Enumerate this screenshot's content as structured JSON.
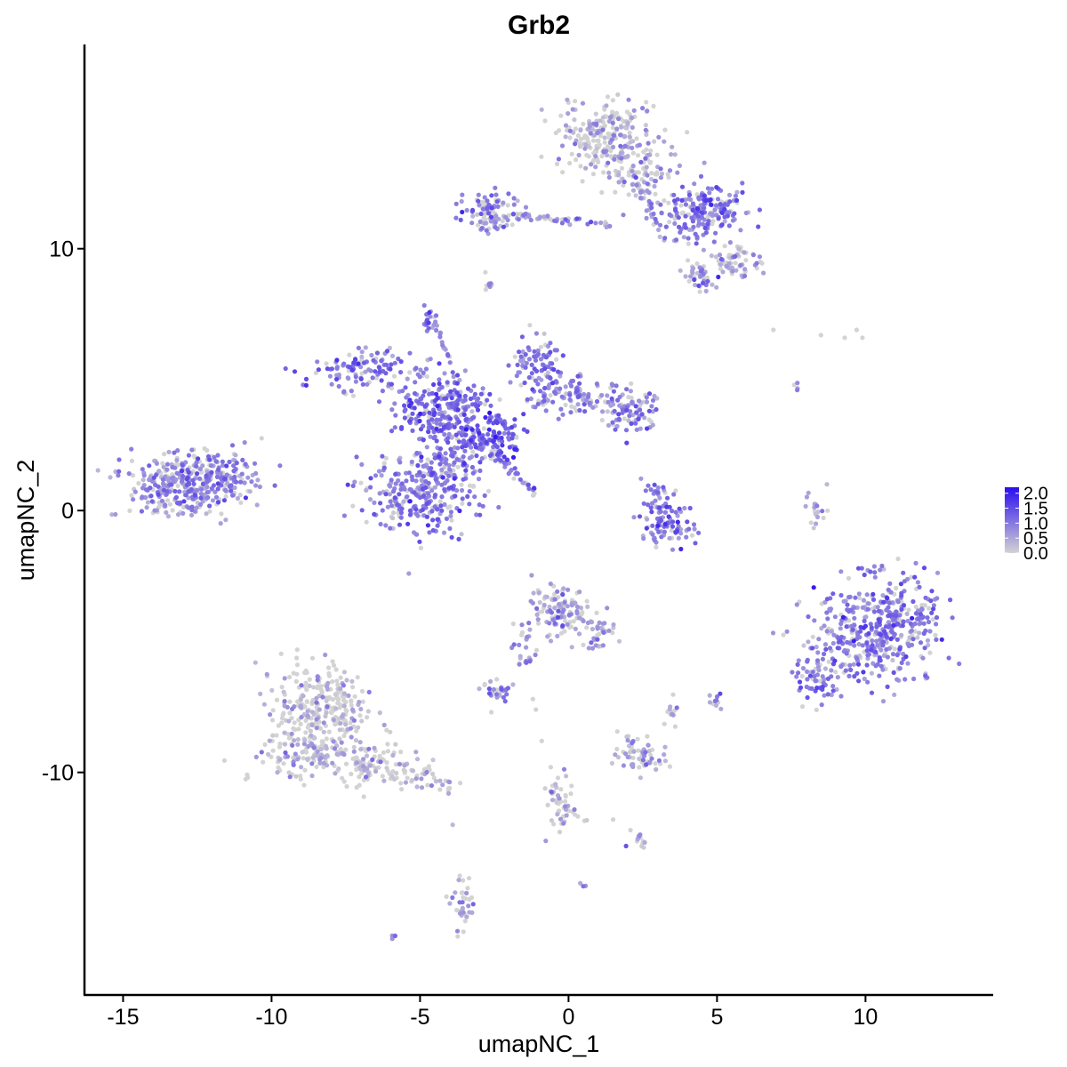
{
  "chart_data": {
    "type": "scatter",
    "title": "Grb2",
    "xlabel": "umapNC_1",
    "ylabel": "umapNC_2",
    "xlim": [
      -16.3,
      14.3
    ],
    "ylim": [
      -18.5,
      17.8
    ],
    "x_ticks": [
      -15,
      -10,
      -5,
      0,
      5,
      10
    ],
    "y_ticks": [
      -10,
      0,
      10
    ],
    "x_tick_labels": [
      "-15",
      "-10",
      "-5",
      "0",
      "5",
      "10"
    ],
    "y_tick_labels": [
      "-10",
      "0",
      "10"
    ],
    "grid": false,
    "color_scale": {
      "low_color": "#d3d3d3",
      "high_color": "#2a0df0",
      "min": 0,
      "max": 2.2,
      "legend_position": "right",
      "legend_ticks": [
        0,
        0.5,
        1,
        1.5,
        2
      ],
      "legend_tick_labels": [
        "0.0",
        "0.5",
        "1.0",
        "1.5",
        "2.0"
      ]
    },
    "clusters": [
      {
        "cx": -13.0,
        "cy": 1.0,
        "sx": 1.0,
        "sy": 0.6,
        "n": 320,
        "expr": 0.75
      },
      {
        "cx": -11.6,
        "cy": 1.3,
        "sx": 0.6,
        "sy": 0.45,
        "n": 90,
        "expr": 0.95
      },
      {
        "cx": -6.6,
        "cy": 5.3,
        "sx": 0.9,
        "sy": 0.45,
        "n": 120,
        "expr": 1.0
      },
      {
        "cx": -4.2,
        "cy": 3.9,
        "sx": 0.9,
        "sy": 0.6,
        "n": 220,
        "expr": 1.15
      },
      {
        "cx": -2.8,
        "cy": 2.8,
        "sx": 0.6,
        "sy": 0.45,
        "n": 130,
        "expr": 1.3
      },
      {
        "cx": -5.0,
        "cy": 0.6,
        "sx": 1.0,
        "sy": 0.75,
        "n": 260,
        "expr": 0.95
      },
      {
        "cx": -4.0,
        "cy": 2.0,
        "sx": 0.5,
        "sy": 0.7,
        "n": 110,
        "expr": 1.05
      },
      {
        "cx": -1.1,
        "cy": 5.5,
        "sx": 0.5,
        "sy": 0.6,
        "n": 90,
        "expr": 1.0
      },
      {
        "cx": 0.3,
        "cy": 4.4,
        "sx": 0.9,
        "sy": 0.4,
        "n": 110,
        "expr": 0.9
      },
      {
        "cx": 2.0,
        "cy": 3.8,
        "sx": 0.55,
        "sy": 0.4,
        "n": 80,
        "expr": 0.9
      },
      {
        "cx": -4.7,
        "cy": 7.3,
        "sx": 0.12,
        "sy": 0.2,
        "n": 18,
        "expr": 1.1
      },
      {
        "cx": 1.2,
        "cy": 14.3,
        "sx": 0.8,
        "sy": 0.7,
        "n": 240,
        "expr": 0.4
      },
      {
        "cx": 2.4,
        "cy": 13.0,
        "sx": 0.5,
        "sy": 0.6,
        "n": 90,
        "expr": 0.6
      },
      {
        "cx": 4.5,
        "cy": 11.4,
        "sx": 0.75,
        "sy": 0.55,
        "n": 200,
        "expr": 1.0
      },
      {
        "cx": 5.6,
        "cy": 9.5,
        "sx": 0.45,
        "sy": 0.35,
        "n": 60,
        "expr": 0.5
      },
      {
        "cx": 4.4,
        "cy": 8.9,
        "sx": 0.3,
        "sy": 0.3,
        "n": 40,
        "expr": 0.8
      },
      {
        "cx": -2.8,
        "cy": 11.7,
        "sx": 0.5,
        "sy": 0.3,
        "n": 60,
        "expr": 0.85
      },
      {
        "cx": -2.5,
        "cy": 11.0,
        "sx": 0.5,
        "sy": 0.25,
        "n": 40,
        "expr": 0.75
      },
      {
        "cx": -2.7,
        "cy": 8.6,
        "sx": 0.08,
        "sy": 0.1,
        "n": 8,
        "expr": 0.8
      },
      {
        "cx": 3.3,
        "cy": -0.5,
        "sx": 0.5,
        "sy": 0.45,
        "n": 90,
        "expr": 1.05
      },
      {
        "cx": 3.0,
        "cy": 0.5,
        "sx": 0.3,
        "sy": 0.3,
        "n": 25,
        "expr": 1.0
      },
      {
        "cx": 10.3,
        "cy": -4.7,
        "sx": 1.05,
        "sy": 1.05,
        "n": 380,
        "expr": 0.95
      },
      {
        "cx": 11.5,
        "cy": -3.8,
        "sx": 0.55,
        "sy": 0.6,
        "n": 80,
        "expr": 1.0
      },
      {
        "cx": 8.4,
        "cy": -6.4,
        "sx": 0.35,
        "sy": 0.55,
        "n": 60,
        "expr": 1.0
      },
      {
        "cx": -8.2,
        "cy": -7.5,
        "sx": 0.85,
        "sy": 0.85,
        "n": 280,
        "expr": 0.3
      },
      {
        "cx": -8.8,
        "cy": -9.3,
        "sx": 1.0,
        "sy": 0.5,
        "n": 140,
        "expr": 0.35
      },
      {
        "cx": -6.6,
        "cy": -9.7,
        "sx": 0.55,
        "sy": 0.4,
        "n": 70,
        "expr": 0.35
      },
      {
        "cx": -5.2,
        "cy": -10.0,
        "sx": 0.5,
        "sy": 0.3,
        "n": 40,
        "expr": 0.4
      },
      {
        "cx": -4.1,
        "cy": -10.5,
        "sx": 0.2,
        "sy": 0.15,
        "n": 12,
        "expr": 0.4
      },
      {
        "cx": -0.2,
        "cy": -3.8,
        "sx": 0.5,
        "sy": 0.55,
        "n": 120,
        "expr": 0.55
      },
      {
        "cx": 1.0,
        "cy": -4.8,
        "sx": 0.35,
        "sy": 0.35,
        "n": 35,
        "expr": 0.6
      },
      {
        "cx": -1.5,
        "cy": -5.0,
        "sx": 0.2,
        "sy": 0.5,
        "n": 18,
        "expr": 0.8
      },
      {
        "cx": -2.5,
        "cy": -6.9,
        "sx": 0.35,
        "sy": 0.18,
        "n": 30,
        "expr": 0.85
      },
      {
        "cx": 2.4,
        "cy": -9.3,
        "sx": 0.4,
        "sy": 0.35,
        "n": 70,
        "expr": 0.55
      },
      {
        "cx": 5.0,
        "cy": -7.3,
        "sx": 0.15,
        "sy": 0.2,
        "n": 10,
        "expr": 0.6
      },
      {
        "cx": 3.5,
        "cy": -7.8,
        "sx": 0.2,
        "sy": 0.2,
        "n": 12,
        "expr": 0.4
      },
      {
        "cx": -0.3,
        "cy": -11.2,
        "sx": 0.2,
        "sy": 0.6,
        "n": 35,
        "expr": 0.4
      },
      {
        "cx": 2.3,
        "cy": -12.6,
        "sx": 0.2,
        "sy": 0.15,
        "n": 12,
        "expr": 0.6
      },
      {
        "cx": -3.6,
        "cy": -15.0,
        "sx": 0.2,
        "sy": 0.6,
        "n": 35,
        "expr": 0.5
      },
      {
        "cx": 8.3,
        "cy": 0.1,
        "sx": 0.18,
        "sy": 0.45,
        "n": 18,
        "expr": 0.55
      },
      {
        "cx": 0.5,
        "cy": -14.3,
        "sx": 0.05,
        "sy": 0.05,
        "n": 3,
        "expr": 0.9
      },
      {
        "cx": -5.9,
        "cy": -16.3,
        "sx": 0.05,
        "sy": 0.05,
        "n": 3,
        "expr": 1.0
      },
      {
        "cx": 7.7,
        "cy": 4.7,
        "sx": 0.05,
        "sy": 0.1,
        "n": 3,
        "expr": 0.9
      },
      {
        "cx": 1.0,
        "cy": -5.2,
        "sx": 0.05,
        "sy": 0.05,
        "n": 3,
        "expr": 0.4
      }
    ],
    "streaks": [
      {
        "from": [
          -2.6,
          2.3
        ],
        "to": [
          -1.1,
          0.6
        ],
        "n": 40,
        "expr": 1.0
      },
      {
        "from": [
          -4.4,
          7.0
        ],
        "to": [
          -3.4,
          3.8
        ],
        "n": 20,
        "expr": 1.0
      },
      {
        "from": [
          -1.9,
          11.3
        ],
        "to": [
          1.5,
          10.9
        ],
        "n": 45,
        "expr": 0.75
      },
      {
        "from": [
          2.4,
          12.3
        ],
        "to": [
          3.3,
          10.3
        ],
        "n": 25,
        "expr": 0.6
      },
      {
        "from": [
          -0.7,
          -10.6
        ],
        "to": [
          0.6,
          -11.9
        ],
        "n": 15,
        "expr": 0.4
      },
      {
        "from": [
          -1.0,
          -5.4
        ],
        "to": [
          -1.8,
          -6.0
        ],
        "n": 8,
        "expr": 0.8
      }
    ],
    "sparse_points": [
      [
        6.9,
        6.9,
        0.0
      ],
      [
        8.5,
        6.7,
        0.0
      ],
      [
        9.3,
        6.6,
        0.0
      ],
      [
        9.7,
        6.9,
        0.0
      ],
      [
        9.9,
        6.6,
        0.0
      ],
      [
        7.6,
        4.8,
        0.0
      ],
      [
        -2.8,
        9.1,
        0.0
      ],
      [
        -0.6,
        -9.8,
        0.0
      ],
      [
        -0.9,
        -8.8,
        0.0
      ],
      [
        1.5,
        -11.8,
        0.0
      ],
      [
        -3.9,
        -12.0,
        0.3
      ],
      [
        -1.2,
        -7.2,
        0.0
      ],
      [
        -2.6,
        -7.7,
        0.0
      ],
      [
        2.5,
        -12.7,
        0.0
      ],
      [
        -1.1,
        -7.6,
        0.0
      ],
      [
        8.7,
        1.0,
        0.3
      ]
    ]
  }
}
